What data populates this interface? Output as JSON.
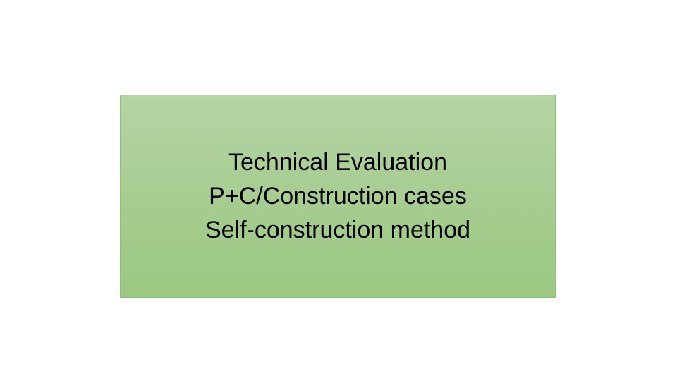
{
  "box": {
    "lines": [
      "Technical Evaluation",
      "P+C/Construction cases",
      "Self-construction method"
    ]
  },
  "colors": {
    "background": "#ffffff",
    "box_fill_top": "#b4d5a4",
    "box_fill_bottom": "#9bc882",
    "box_border": "#8fbf75",
    "text": "#000000"
  }
}
